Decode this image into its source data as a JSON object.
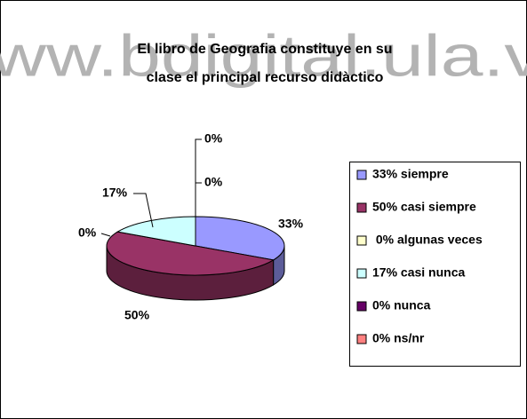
{
  "chart_data": {
    "type": "pie3d",
    "watermark": "www.bdigital.ula.ve",
    "title": [
      "El libro de Geografia constituye en  su",
      "clase el principal recurso didàctico"
    ],
    "categories": [
      "33% siempre",
      "50% casi siempre",
      " 0% algunas veces",
      "17% casi nunca",
      "0% nunca",
      "0% ns/nr"
    ],
    "values": [
      33,
      50,
      0,
      17,
      0,
      0
    ],
    "value_labels": [
      "33%",
      "50%",
      "0%",
      "17%",
      "0%",
      "0%"
    ],
    "colors": [
      "#9999ff",
      "#993366",
      "#ffffcc",
      "#ccffff",
      "#660066",
      "#ff8080"
    ],
    "legend": "right"
  }
}
